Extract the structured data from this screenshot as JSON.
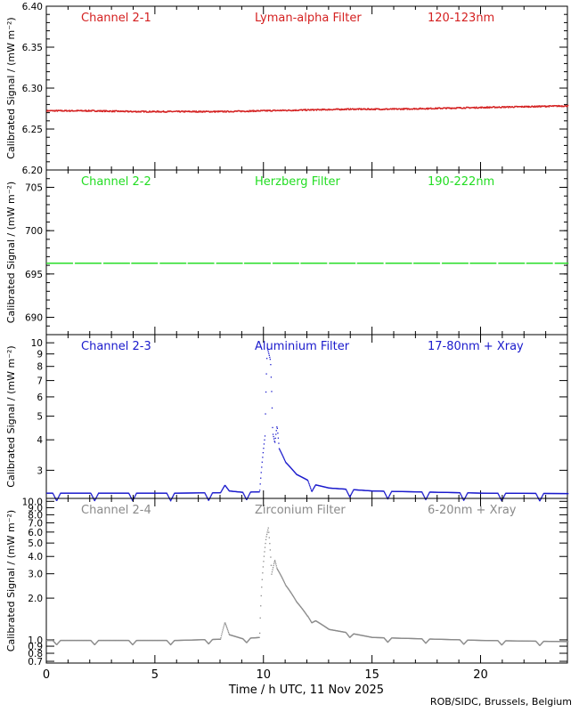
{
  "colors": {
    "ch1": "#d42020",
    "ch2": "#22dd22",
    "ch3": "#1a1acc",
    "ch4": "#8a8a8a",
    "axis": "#000000"
  },
  "xlabel": "Time / h UTC, 11 Nov 2025",
  "ylabel": "Calibrated Signal / (mW m⁻²)",
  "credit": "ROB/SIDC, Brussels, Belgium",
  "x_ticks": [
    "0",
    "5",
    "10",
    "15",
    "20"
  ],
  "chart_data": [
    {
      "type": "scatter",
      "channel": "Channel 2-1",
      "filter": "Lyman-alpha Filter",
      "band": "120-123nm",
      "xlim": [
        0,
        24
      ],
      "ylim": [
        6.2,
        6.4
      ],
      "yscale": "linear",
      "y_ticks": [
        "6.20",
        "6.25",
        "6.30",
        "6.35",
        "6.40"
      ],
      "x": [
        0,
        2,
        4,
        6,
        8,
        10,
        12,
        14,
        16,
        18,
        20,
        22,
        24
      ],
      "values": [
        6.273,
        6.273,
        6.272,
        6.272,
        6.272,
        6.273,
        6.274,
        6.275,
        6.275,
        6.276,
        6.277,
        6.278,
        6.279
      ]
    },
    {
      "type": "scatter",
      "channel": "Channel 2-2",
      "filter": "Herzberg Filter",
      "band": "190-222nm",
      "xlim": [
        0,
        24
      ],
      "ylim": [
        688,
        707
      ],
      "yscale": "linear",
      "y_ticks": [
        "690",
        "695",
        "700",
        "705"
      ],
      "x": [
        0,
        4,
        8,
        12,
        16,
        20,
        24
      ],
      "values": [
        696.3,
        696.3,
        696.3,
        696.3,
        696.3,
        696.3,
        696.3
      ]
    },
    {
      "type": "scatter",
      "channel": "Channel 2-3",
      "filter": "Aluminium Filter",
      "band": "17-80nm + Xray",
      "xlim": [
        0,
        24
      ],
      "ylim": [
        2.3,
        10.8
      ],
      "yscale": "log",
      "y_ticks": [
        "3",
        "4",
        "5",
        "6",
        "7",
        "8",
        "9",
        "10"
      ],
      "x": [
        0,
        2,
        4,
        6,
        8,
        8.2,
        8.4,
        9,
        9.8,
        10.05,
        10.15,
        10.3,
        10.4,
        10.5,
        10.6,
        10.7,
        11,
        11.5,
        12,
        12.2,
        13,
        15,
        20,
        24
      ],
      "values": [
        2.43,
        2.43,
        2.43,
        2.43,
        2.44,
        2.62,
        2.48,
        2.45,
        2.46,
        4.2,
        9.6,
        8.5,
        4.3,
        3.9,
        4.6,
        3.7,
        3.25,
        2.9,
        2.75,
        2.65,
        2.55,
        2.48,
        2.43,
        2.42
      ]
    },
    {
      "type": "scatter",
      "channel": "Channel 2-4",
      "filter": "Zirconium Filter",
      "band": "6-20nm + Xray",
      "xlim": [
        0,
        24
      ],
      "ylim": [
        0.68,
        10.5
      ],
      "yscale": "log",
      "y_ticks": [
        "0.7",
        "0.8",
        "0.9",
        "1.0",
        "2.0",
        "3.0",
        "4.0",
        "5.0",
        "6.0",
        "7.0",
        "8.0",
        "9.0",
        "10.0"
      ],
      "x": [
        0,
        2,
        4,
        6,
        8,
        8.2,
        8.4,
        9,
        9.8,
        10.1,
        10.2,
        10.35,
        10.5,
        10.6,
        11,
        11.5,
        12,
        13,
        15,
        20,
        24
      ],
      "values": [
        1.0,
        1.0,
        1.0,
        1.0,
        1.02,
        1.35,
        1.1,
        1.03,
        1.05,
        5.5,
        6.5,
        3.0,
        3.8,
        3.3,
        2.5,
        1.9,
        1.5,
        1.2,
        1.05,
        1.0,
        0.98
      ]
    }
  ]
}
